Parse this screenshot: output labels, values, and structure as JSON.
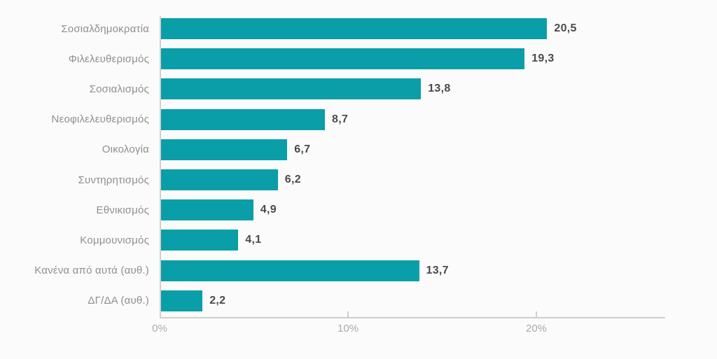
{
  "chart_data": {
    "type": "bar",
    "orientation": "horizontal",
    "categories": [
      "Σοσιαλδημοκρατία",
      "Φιλελευθερισμός",
      "Σοσιαλισμός",
      "Νεοφιλελευθερισμός",
      "Οικολογία",
      "Συντηρητισμός",
      "Εθνικισμός",
      "Κομμουνισμός",
      "Κανένα από αυτά (αυθ.)",
      "ΔΓ/ΔΑ (αυθ.)"
    ],
    "values": [
      20.5,
      19.3,
      13.8,
      8.7,
      6.7,
      6.2,
      4.9,
      4.1,
      13.7,
      2.2
    ],
    "value_labels": [
      "20,5",
      "19,3",
      "13,8",
      "8,7",
      "6,7",
      "6,2",
      "4,9",
      "4,1",
      "13,7",
      "2,2"
    ],
    "x_ticks": [
      "0%",
      "10%",
      "20%"
    ],
    "x_tick_values": [
      0,
      10,
      20
    ],
    "xlim": [
      0,
      26.8
    ],
    "grid": false,
    "legend": false,
    "bar_color": "#099ea8"
  },
  "colors": {
    "bar": "#099ea8",
    "category_label": "#8f8f8f",
    "value_label": "#4a4a4a",
    "axis": "#cfcfcf",
    "tick_label": "#a9a9a9",
    "background": "#fbfbfb"
  }
}
